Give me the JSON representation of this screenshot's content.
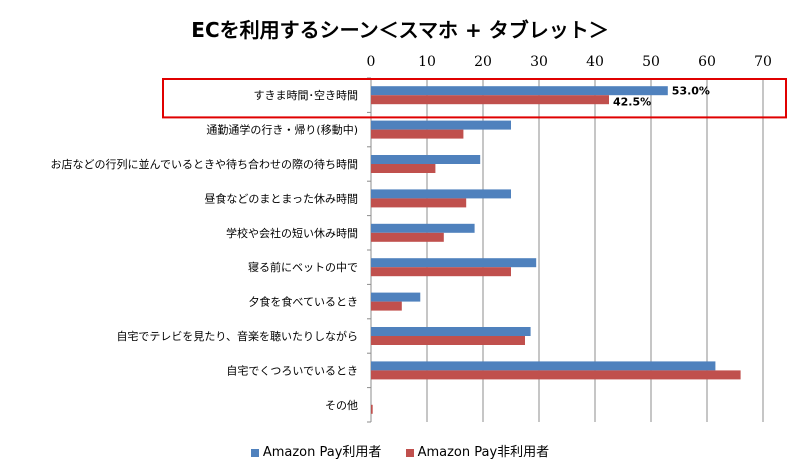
{
  "chart_data": {
    "type": "bar",
    "orientation": "horizontal",
    "title": "ECを利用するシーン＜スマホ + タブレット＞",
    "categories": [
      "すきま時間･空き時間",
      "通勤通学の行き・帰り(移動中)",
      "お店などの行列に並んでいるときや待ち合わせの際の待ち時間",
      "昼食などのまとまった休み時間",
      "学校や会社の短い休み時間",
      "寝る前にベットの中で",
      "夕食を食べているとき",
      "自宅でテレビを見たり、音楽を聴いたりしながら",
      "自宅でくつろいでいるとき",
      "その他"
    ],
    "series": [
      {
        "name": "Amazon Pay利用者",
        "color": "#4F81BD",
        "values": [
          53.0,
          25.0,
          19.5,
          25.0,
          18.5,
          29.5,
          8.8,
          28.5,
          61.5,
          0.0
        ]
      },
      {
        "name": "Amazon Pay非利用者",
        "color": "#C0504D",
        "values": [
          42.5,
          16.5,
          11.5,
          17.0,
          13.0,
          25.0,
          5.5,
          27.5,
          66.0,
          0.3
        ]
      }
    ],
    "xlim": [
      0,
      70
    ],
    "xticks": [
      "0",
      "10",
      "20",
      "30",
      "40",
      "50",
      "60",
      "70"
    ],
    "data_labels": [
      {
        "category_index": 0,
        "series_index": 0,
        "text": "53.0%"
      },
      {
        "category_index": 0,
        "series_index": 1,
        "text": "42.5%"
      }
    ],
    "highlight_category_index": 0,
    "highlight_color": "#E00000",
    "grid": true,
    "legend_position": "bottom"
  }
}
